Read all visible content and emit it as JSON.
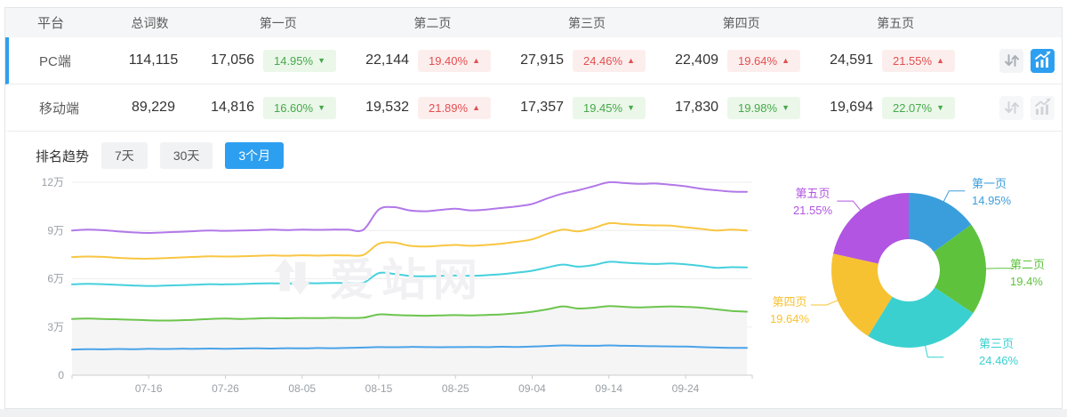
{
  "table": {
    "headers": [
      "平台",
      "总词数",
      "第一页",
      "第二页",
      "第三页",
      "第四页",
      "第五页"
    ],
    "rows": [
      {
        "platform": "PC端",
        "total": "114,115",
        "selected": true,
        "pages": [
          {
            "value": "17,056",
            "pct": "14.95%",
            "trend": "down"
          },
          {
            "value": "22,144",
            "pct": "19.40%",
            "trend": "up"
          },
          {
            "value": "27,915",
            "pct": "24.46%",
            "trend": "up"
          },
          {
            "value": "22,409",
            "pct": "19.64%",
            "trend": "up"
          },
          {
            "value": "24,591",
            "pct": "21.55%",
            "trend": "up"
          }
        ],
        "icons": {
          "chart_active": true
        }
      },
      {
        "platform": "移动端",
        "total": "89,229",
        "selected": false,
        "pages": [
          {
            "value": "14,816",
            "pct": "16.60%",
            "trend": "down"
          },
          {
            "value": "19,532",
            "pct": "21.89%",
            "trend": "up"
          },
          {
            "value": "17,357",
            "pct": "19.45%",
            "trend": "down"
          },
          {
            "value": "17,830",
            "pct": "19.98%",
            "trend": "down"
          },
          {
            "value": "19,694",
            "pct": "22.07%",
            "trend": "down"
          }
        ],
        "icons": {
          "chart_active": false
        }
      }
    ]
  },
  "trend_controls": {
    "label": "排名趋势",
    "ranges": [
      {
        "label": "7天",
        "active": false
      },
      {
        "label": "30天",
        "active": false
      },
      {
        "label": "3个月",
        "active": true
      }
    ]
  },
  "watermark": {
    "text": "爱站网"
  },
  "colors": {
    "accent": "#2d9ff0"
  },
  "chart_data": {
    "line": {
      "type": "line",
      "title": "排名趋势(3个月)",
      "cumulative": true,
      "unit": "万",
      "y_ticks": [
        {
          "label": "0",
          "v": 0
        },
        {
          "label": "3万",
          "v": 3
        },
        {
          "label": "6万",
          "v": 6
        },
        {
          "label": "9万",
          "v": 9
        },
        {
          "label": "12万",
          "v": 12
        }
      ],
      "y_max": 12,
      "x_ticks": [
        {
          "label": "07-16",
          "day": 10
        },
        {
          "label": "07-26",
          "day": 20
        },
        {
          "label": "08-05",
          "day": 30
        },
        {
          "label": "08-15",
          "day": 40
        },
        {
          "label": "08-25",
          "day": 50
        },
        {
          "label": "09-04",
          "day": 60
        },
        {
          "label": "09-14",
          "day": 70
        },
        {
          "label": "09-24",
          "day": 80
        }
      ],
      "days": [
        0,
        2,
        4,
        6,
        8,
        10,
        12,
        14,
        16,
        18,
        20,
        22,
        24,
        26,
        28,
        30,
        32,
        34,
        36,
        38,
        40,
        42,
        44,
        46,
        48,
        50,
        52,
        54,
        56,
        58,
        60,
        62,
        64,
        66,
        68,
        70,
        72,
        74,
        76,
        78,
        80,
        82,
        84,
        86,
        88
      ],
      "series": [
        {
          "name": "第一页",
          "color": "#4aa3e8",
          "values": [
            1.6,
            1.62,
            1.61,
            1.63,
            1.62,
            1.64,
            1.63,
            1.65,
            1.64,
            1.66,
            1.65,
            1.66,
            1.67,
            1.66,
            1.68,
            1.67,
            1.69,
            1.68,
            1.7,
            1.72,
            1.75,
            1.74,
            1.76,
            1.75,
            1.74,
            1.75,
            1.76,
            1.75,
            1.77,
            1.76,
            1.78,
            1.82,
            1.85,
            1.84,
            1.83,
            1.85,
            1.83,
            1.82,
            1.8,
            1.79,
            1.78,
            1.75,
            1.72,
            1.7,
            1.7
          ]
        },
        {
          "name": "第二页",
          "color": "#6dc54d",
          "values": [
            3.5,
            3.52,
            3.5,
            3.48,
            3.45,
            3.42,
            3.4,
            3.42,
            3.45,
            3.5,
            3.52,
            3.5,
            3.53,
            3.55,
            3.54,
            3.56,
            3.55,
            3.57,
            3.56,
            3.58,
            3.78,
            3.75,
            3.72,
            3.7,
            3.72,
            3.74,
            3.72,
            3.75,
            3.78,
            3.85,
            3.95,
            4.1,
            4.28,
            4.15,
            4.2,
            4.3,
            4.25,
            4.22,
            4.25,
            4.28,
            4.25,
            4.2,
            4.1,
            4.0,
            3.95
          ]
        },
        {
          "name": "第三页",
          "color": "#45d0dd",
          "values": [
            5.65,
            5.68,
            5.66,
            5.62,
            5.58,
            5.55,
            5.57,
            5.6,
            5.63,
            5.66,
            5.65,
            5.67,
            5.7,
            5.72,
            5.7,
            5.73,
            5.72,
            5.74,
            5.73,
            5.75,
            6.35,
            6.3,
            6.18,
            6.15,
            6.18,
            6.2,
            6.18,
            6.22,
            6.28,
            6.38,
            6.5,
            6.7,
            6.88,
            6.75,
            6.85,
            7.05,
            7.0,
            6.95,
            6.92,
            6.95,
            6.9,
            6.8,
            6.68,
            6.72,
            6.7
          ]
        },
        {
          "name": "第四页",
          "color": "#f9c641",
          "values": [
            7.35,
            7.38,
            7.36,
            7.3,
            7.26,
            7.25,
            7.28,
            7.32,
            7.36,
            7.4,
            7.38,
            7.4,
            7.42,
            7.45,
            7.43,
            7.46,
            7.44,
            7.46,
            7.45,
            7.48,
            8.18,
            8.25,
            8.05,
            8.0,
            8.05,
            8.1,
            8.05,
            8.1,
            8.18,
            8.3,
            8.45,
            8.8,
            9.05,
            8.95,
            9.15,
            9.45,
            9.4,
            9.35,
            9.32,
            9.3,
            9.2,
            9.1,
            9.0,
            9.05,
            9.0
          ]
        },
        {
          "name": "第五页",
          "color": "#b278e8",
          "values": [
            9.0,
            9.05,
            9.02,
            8.95,
            8.88,
            8.85,
            8.88,
            8.92,
            8.96,
            9.0,
            8.98,
            9.0,
            9.02,
            9.05,
            9.03,
            9.06,
            9.04,
            9.06,
            9.05,
            9.05,
            10.3,
            10.45,
            10.25,
            10.2,
            10.28,
            10.35,
            10.25,
            10.3,
            10.4,
            10.5,
            10.65,
            11.0,
            11.3,
            11.5,
            11.75,
            12.0,
            11.95,
            11.9,
            11.92,
            11.85,
            11.75,
            11.6,
            11.5,
            11.42,
            11.4
          ]
        }
      ]
    },
    "donut": {
      "type": "pie",
      "slices": [
        {
          "label": "第一页",
          "pct": 14.95,
          "display_pct": "14.95%",
          "color": "#3b9edc"
        },
        {
          "label": "第二页",
          "pct": 19.4,
          "display_pct": "19.4%",
          "color": "#5ec23d"
        },
        {
          "label": "第三页",
          "pct": 24.46,
          "display_pct": "24.46%",
          "color": "#3ad0d0"
        },
        {
          "label": "第四页",
          "pct": 19.64,
          "display_pct": "19.64%",
          "color": "#f7c231"
        },
        {
          "label": "第五页",
          "pct": 21.55,
          "display_pct": "21.55%",
          "color": "#b155e2"
        }
      ]
    }
  }
}
